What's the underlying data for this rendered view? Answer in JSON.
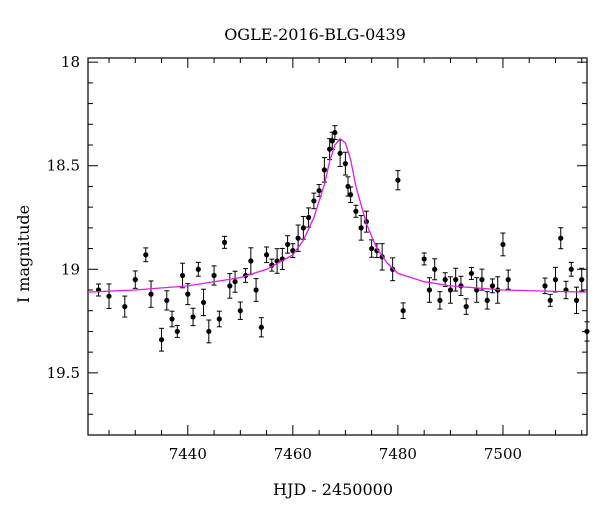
{
  "chart_data": {
    "type": "scatter",
    "title": "OGLE-2016-BLG-0439",
    "xlabel": "HJD - 2450000",
    "ylabel": "I magnitude",
    "xlim": [
      7421,
      7516
    ],
    "ylim": [
      19.8,
      17.98
    ],
    "y_inverted": true,
    "xticks": [
      7440,
      7460,
      7480,
      7500
    ],
    "xtick_labels": [
      "7440",
      "7460",
      "7480",
      "7500"
    ],
    "yticks": [
      18,
      18.5,
      19,
      19.5
    ],
    "ytick_labels": [
      "18",
      "18.5",
      "19",
      "19.5"
    ],
    "grid": false,
    "colors": {
      "points": "#000000",
      "model": "#e020e0",
      "frame": "#000000"
    },
    "model_curve": {
      "name": "",
      "x": [
        7421,
        7430,
        7440,
        7450,
        7455,
        7460,
        7462,
        7464,
        7466,
        7467,
        7468,
        7469,
        7470,
        7471,
        7472,
        7474,
        7476,
        7478,
        7480,
        7485,
        7490,
        7500,
        7516
      ],
      "y": [
        19.11,
        19.1,
        19.08,
        19.04,
        19.0,
        18.93,
        18.86,
        18.75,
        18.59,
        18.48,
        18.4,
        18.37,
        18.39,
        18.47,
        18.6,
        18.78,
        18.9,
        18.97,
        19.02,
        19.06,
        19.08,
        19.1,
        19.11
      ]
    },
    "series": [
      {
        "x": [
          7423,
          7425,
          7428,
          7430,
          7432,
          7433,
          7435,
          7436,
          7437,
          7438,
          7439,
          7440,
          7441,
          7442,
          7443,
          7444,
          7445,
          7446,
          7447,
          7448,
          7449,
          7450,
          7451,
          7452,
          7453,
          7454,
          7455,
          7456,
          7457,
          7458,
          7459,
          7460,
          7461,
          7462,
          7463,
          7464,
          7465,
          7466,
          7467,
          7467.5,
          7468,
          7469,
          7470,
          7470.5,
          7471,
          7472,
          7473,
          7474,
          7475,
          7476,
          7477,
          7479,
          7480,
          7481,
          7485,
          7486,
          7487,
          7488,
          7489,
          7490,
          7491,
          7492,
          7493,
          7494,
          7495,
          7496,
          7497,
          7498,
          7499,
          7500,
          7501,
          7508,
          7509,
          7510,
          7511,
          7512,
          7513,
          7514,
          7515,
          7516
        ],
        "y": [
          19.1,
          19.13,
          19.18,
          19.05,
          18.93,
          19.12,
          19.34,
          19.15,
          19.24,
          19.3,
          19.03,
          19.12,
          19.23,
          19.0,
          19.16,
          19.3,
          19.03,
          19.24,
          18.87,
          19.08,
          19.06,
          19.2,
          19.03,
          18.96,
          19.1,
          19.28,
          18.93,
          18.98,
          18.96,
          18.95,
          18.88,
          18.91,
          18.85,
          18.8,
          18.75,
          18.67,
          18.62,
          18.52,
          18.42,
          18.38,
          18.34,
          18.44,
          18.49,
          18.6,
          18.64,
          18.72,
          18.8,
          18.77,
          18.9,
          18.91,
          18.94,
          19.0,
          18.57,
          19.2,
          18.95,
          19.1,
          19.0,
          19.15,
          19.05,
          19.1,
          19.05,
          19.08,
          19.18,
          19.02,
          19.1,
          19.05,
          19.15,
          19.08,
          19.1,
          18.88,
          19.05,
          19.08,
          19.15,
          19.05,
          18.85,
          19.1,
          19.0,
          19.15,
          19.05,
          19.3
        ]
      }
    ]
  }
}
